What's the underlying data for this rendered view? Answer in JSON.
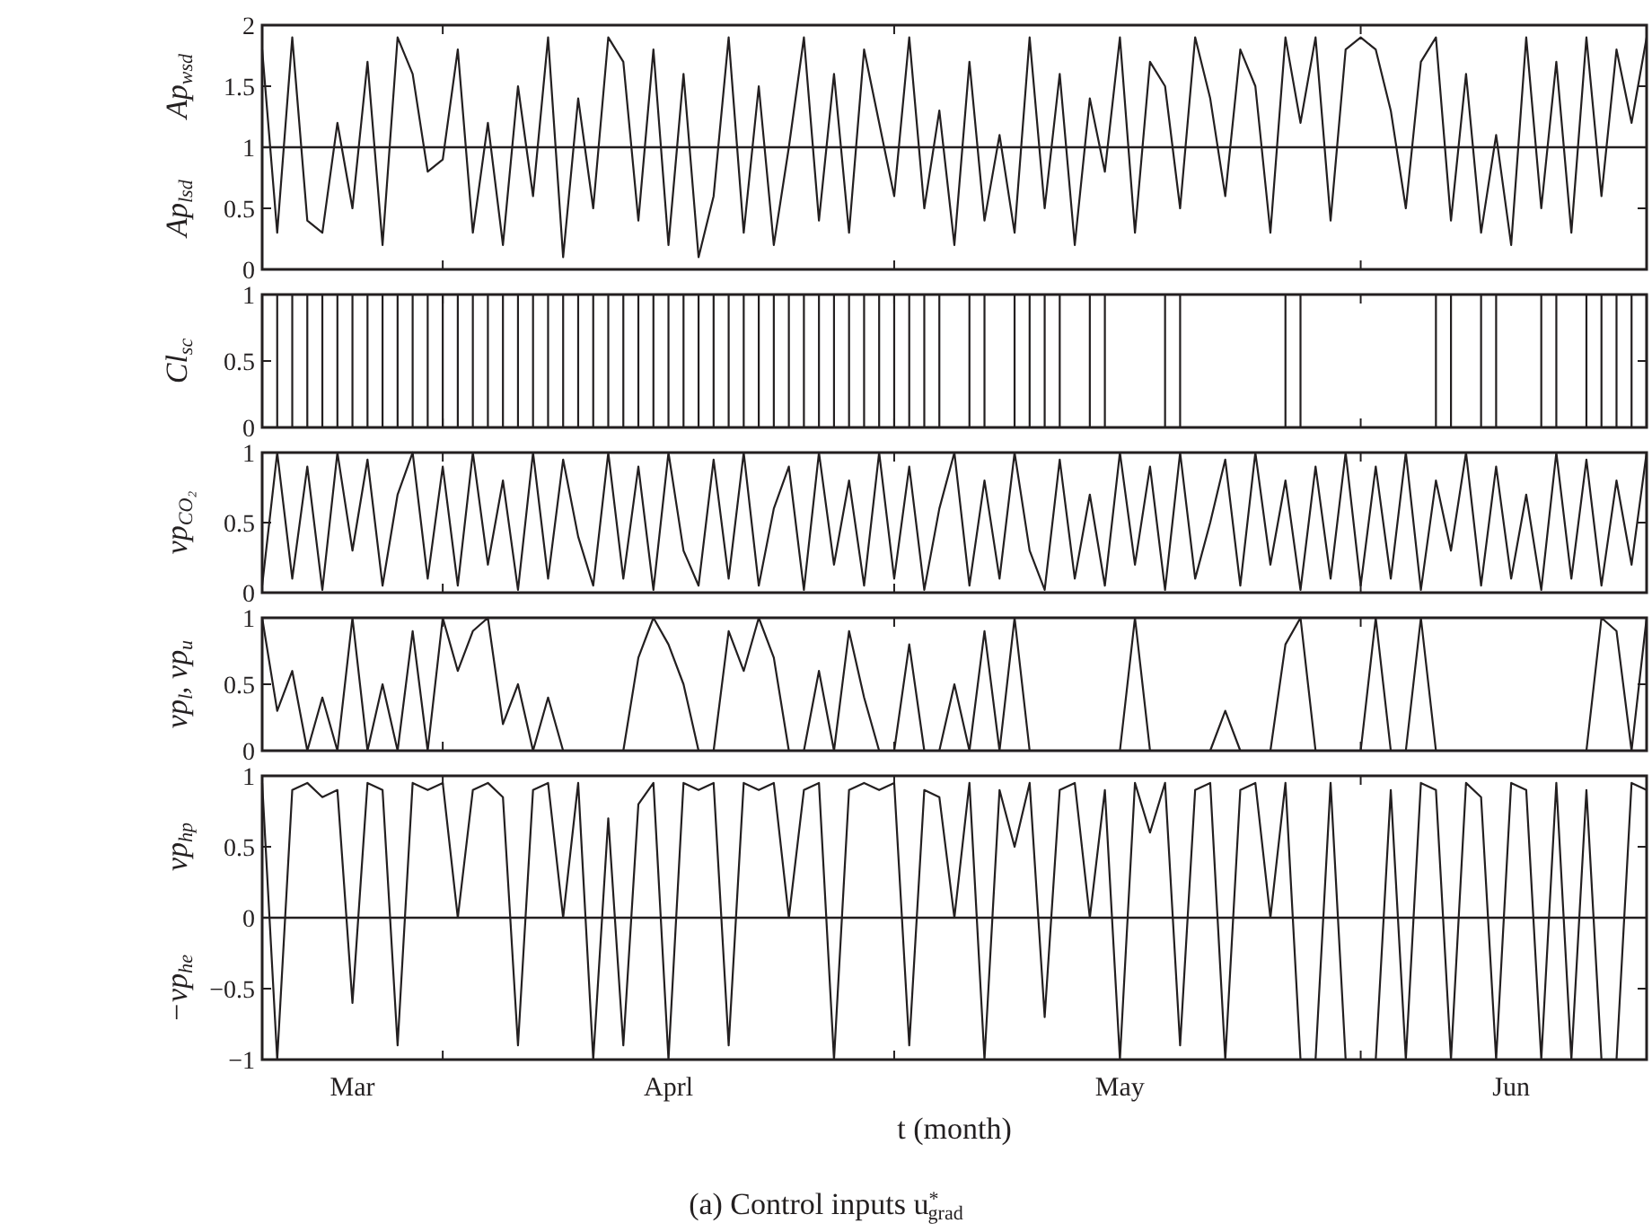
{
  "chart_data": [
    {
      "type": "line",
      "ylabel": "Ap$_{wsd}$",
      "annotations": [
        "Ap$_{lsd}$"
      ],
      "tick_labels": "y",
      "xlim": [
        "--03-20",
        "--06-20"
      ],
      "xticks": [
        {
          "value": "--04-01",
          "label": null
        },
        {
          "value": "--05-01",
          "label": null
        },
        {
          "value": "--06-01",
          "label": null
        }
      ],
      "ylim": [
        0,
        2
      ],
      "yticks": [
        0,
        0.5,
        1,
        1.5,
        2
      ],
      "ref_lines": [
        {
          "axis": "y",
          "value": 1,
          "color": "#231f20"
        }
      ],
      "x": [
        "--03-20",
        "--03-21",
        "--03-22",
        "--03-23",
        "--03-24",
        "--03-25",
        "--03-26",
        "--03-27",
        "--03-28",
        "--03-29",
        "--03-30",
        "--03-31",
        "--04-01",
        "--04-02",
        "--04-03",
        "--04-04",
        "--04-05",
        "--04-06",
        "--04-07",
        "--04-08",
        "--04-09",
        "--04-10",
        "--04-11",
        "--04-12",
        "--04-13",
        "--04-14",
        "--04-15",
        "--04-16",
        "--04-17",
        "--04-18",
        "--04-19",
        "--04-20",
        "--04-21",
        "--04-22",
        "--04-23",
        "--04-24",
        "--04-25",
        "--04-26",
        "--04-27",
        "--04-28",
        "--04-29",
        "--04-30",
        "--05-01",
        "--05-02",
        "--05-03",
        "--05-04",
        "--05-05",
        "--05-06",
        "--05-07",
        "--05-08",
        "--05-09",
        "--05-10",
        "--05-11",
        "--05-12",
        "--05-13",
        "--05-14",
        "--05-15",
        "--05-16",
        "--05-17",
        "--05-18",
        "--05-19",
        "--05-20",
        "--05-21",
        "--05-22",
        "--05-23",
        "--05-24",
        "--05-25",
        "--05-26",
        "--05-27",
        "--05-28",
        "--05-29",
        "--05-30",
        "--05-31",
        "--06-01",
        "--06-02",
        "--06-03",
        "--06-04",
        "--06-05",
        "--06-06",
        "--06-07",
        "--06-08",
        "--06-09",
        "--06-10",
        "--06-11",
        "--06-12",
        "--06-13",
        "--06-14",
        "--06-15",
        "--06-16",
        "--06-17",
        "--06-18",
        "--06-19",
        "--06-20"
      ],
      "series": [
        {
          "color": "#231f20",
          "values": [
            1.8,
            0.3,
            1.9,
            0.4,
            0.3,
            1.2,
            0.5,
            1.7,
            0.2,
            1.9,
            1.6,
            0.8,
            0.9,
            1.8,
            0.3,
            1.2,
            0.2,
            1.5,
            0.6,
            1.9,
            0.1,
            1.4,
            0.5,
            1.9,
            1.7,
            0.4,
            1.8,
            0.2,
            1.6,
            0.1,
            0.6,
            1.9,
            0.3,
            1.5,
            0.2,
            1.0,
            1.9,
            0.4,
            1.6,
            0.3,
            1.8,
            1.2,
            0.6,
            1.9,
            0.5,
            1.3,
            0.2,
            1.7,
            0.4,
            1.1,
            0.3,
            1.9,
            0.5,
            1.6,
            0.2,
            1.4,
            0.8,
            1.9,
            0.3,
            1.7,
            1.5,
            0.5,
            1.9,
            1.4,
            0.6,
            1.8,
            1.5,
            0.3,
            1.9,
            1.2,
            1.9,
            0.4,
            1.8,
            1.9,
            1.8,
            1.3,
            0.5,
            1.7,
            1.9,
            0.4,
            1.6,
            0.3,
            1.1,
            0.2,
            1.9,
            0.5,
            1.7,
            0.3,
            1.9,
            0.6,
            1.8,
            1.2,
            1.9
          ]
        }
      ]
    },
    {
      "type": "step",
      "ylabel": "Cl$_{sc}$",
      "tick_labels": "y",
      "xlim": [
        "--03-20",
        "--06-20"
      ],
      "xticks": [
        {
          "value": "--04-01",
          "label": null
        },
        {
          "value": "--05-01",
          "label": null
        },
        {
          "value": "--06-01",
          "label": null
        }
      ],
      "ylim": [
        0,
        1
      ],
      "yticks": [
        0,
        0.5,
        1
      ],
      "x": [
        "--03-20",
        "--03-21",
        "--03-22",
        "--03-23",
        "--03-24",
        "--03-25",
        "--03-26",
        "--03-27",
        "--03-28",
        "--03-29",
        "--03-30",
        "--03-31",
        "--04-01",
        "--04-02",
        "--04-03",
        "--04-04",
        "--04-05",
        "--04-06",
        "--04-07",
        "--04-08",
        "--04-09",
        "--04-10",
        "--04-11",
        "--04-12",
        "--04-13",
        "--04-14",
        "--04-15",
        "--04-16",
        "--04-17",
        "--04-18",
        "--04-19",
        "--04-20",
        "--04-21",
        "--04-22",
        "--04-23",
        "--04-24",
        "--04-25",
        "--04-26",
        "--04-27",
        "--04-28",
        "--04-29",
        "--04-30",
        "--05-01",
        "--05-02",
        "--05-03",
        "--05-04",
        "--05-05",
        "--05-06",
        "--05-07",
        "--05-08",
        "--05-09",
        "--05-10",
        "--05-11",
        "--05-12",
        "--05-13",
        "--05-14",
        "--05-15",
        "--05-16",
        "--05-17",
        "--05-18",
        "--05-19",
        "--05-20",
        "--05-21",
        "--05-22",
        "--05-23",
        "--05-24",
        "--05-25",
        "--05-26",
        "--05-27",
        "--05-28",
        "--05-29",
        "--05-30",
        "--05-31",
        "--06-01",
        "--06-02",
        "--06-03",
        "--06-04",
        "--06-05",
        "--06-06",
        "--06-07",
        "--06-08",
        "--06-09",
        "--06-10",
        "--06-11",
        "--06-12",
        "--06-13",
        "--06-14",
        "--06-15",
        "--06-16",
        "--06-17",
        "--06-18",
        "--06-19",
        "--06-20"
      ],
      "series": [
        {
          "color": "#231f20",
          "values": [
            1,
            0,
            1,
            0,
            1,
            0,
            1,
            0,
            1,
            0,
            1,
            0,
            1,
            0,
            1,
            0,
            1,
            0,
            1,
            0,
            1,
            0,
            1,
            0,
            1,
            0,
            1,
            0,
            1,
            0,
            1,
            0,
            1,
            0,
            1,
            0,
            1,
            0,
            1,
            0,
            1,
            0,
            1,
            0,
            1,
            0,
            0,
            1,
            0,
            0,
            1,
            0,
            1,
            0,
            0,
            1,
            0,
            0,
            0,
            0,
            1,
            0,
            0,
            0,
            0,
            0,
            0,
            0,
            1,
            0,
            0,
            0,
            0,
            0,
            0,
            0,
            0,
            0,
            1,
            0,
            0,
            1,
            0,
            0,
            0,
            1,
            0,
            0,
            1,
            0,
            1,
            0,
            1
          ]
        }
      ]
    },
    {
      "type": "line",
      "ylabel": "vp$_{CO₂}$",
      "tick_labels": "y",
      "xlim": [
        "--03-20",
        "--06-20"
      ],
      "xticks": [
        {
          "value": "--04-01",
          "label": null
        },
        {
          "value": "--05-01",
          "label": null
        },
        {
          "value": "--06-01",
          "label": null
        }
      ],
      "ylim": [
        0,
        1
      ],
      "yticks": [
        0,
        0.5,
        1
      ],
      "x": [
        "--03-20",
        "--03-21",
        "--03-22",
        "--03-23",
        "--03-24",
        "--03-25",
        "--03-26",
        "--03-27",
        "--03-28",
        "--03-29",
        "--03-30",
        "--03-31",
        "--04-01",
        "--04-02",
        "--04-03",
        "--04-04",
        "--04-05",
        "--04-06",
        "--04-07",
        "--04-08",
        "--04-09",
        "--04-10",
        "--04-11",
        "--04-12",
        "--04-13",
        "--04-14",
        "--04-15",
        "--04-16",
        "--04-17",
        "--04-18",
        "--04-19",
        "--04-20",
        "--04-21",
        "--04-22",
        "--04-23",
        "--04-24",
        "--04-25",
        "--04-26",
        "--04-27",
        "--04-28",
        "--04-29",
        "--04-30",
        "--05-01",
        "--05-02",
        "--05-03",
        "--05-04",
        "--05-05",
        "--05-06",
        "--05-07",
        "--05-08",
        "--05-09",
        "--05-10",
        "--05-11",
        "--05-12",
        "--05-13",
        "--05-14",
        "--05-15",
        "--05-16",
        "--05-17",
        "--05-18",
        "--05-19",
        "--05-20",
        "--05-21",
        "--05-22",
        "--05-23",
        "--05-24",
        "--05-25",
        "--05-26",
        "--05-27",
        "--05-28",
        "--05-29",
        "--05-30",
        "--05-31",
        "--06-01",
        "--06-02",
        "--06-03",
        "--06-04",
        "--06-05",
        "--06-06",
        "--06-07",
        "--06-08",
        "--06-09",
        "--06-10",
        "--06-11",
        "--06-12",
        "--06-13",
        "--06-14",
        "--06-15",
        "--06-16",
        "--06-17",
        "--06-18",
        "--06-19",
        "--06-20"
      ],
      "series": [
        {
          "color": "#231f20",
          "values": [
            0.05,
            1,
            0.1,
            0.9,
            0.02,
            1,
            0.3,
            0.95,
            0.05,
            0.7,
            1,
            0.1,
            0.9,
            0.05,
            1,
            0.2,
            0.8,
            0.02,
            1,
            0.1,
            0.95,
            0.4,
            0.05,
            1,
            0.1,
            0.9,
            0.02,
            1,
            0.3,
            0.05,
            0.95,
            0.1,
            1,
            0.05,
            0.6,
            0.9,
            0.02,
            1,
            0.2,
            0.8,
            0.05,
            1,
            0.1,
            0.9,
            0.02,
            0.6,
            1,
            0.05,
            0.8,
            0.1,
            1,
            0.3,
            0.02,
            0.95,
            0.1,
            0.7,
            0.05,
            1,
            0.2,
            0.9,
            0.02,
            1,
            0.1,
            0.5,
            0.95,
            0.05,
            1,
            0.2,
            0.8,
            0.02,
            0.9,
            0.1,
            1,
            0.05,
            0.9,
            0.1,
            1,
            0.02,
            0.8,
            0.3,
            1,
            0.05,
            0.9,
            0.1,
            0.7,
            0.02,
            1,
            0.1,
            0.95,
            0.05,
            0.8,
            0.2,
            1
          ]
        }
      ]
    },
    {
      "type": "line",
      "ylabel": "vp$_{l}$, vp$_{u}$",
      "tick_labels": "y",
      "xlim": [
        "--03-20",
        "--06-20"
      ],
      "xticks": [
        {
          "value": "--04-01",
          "label": null
        },
        {
          "value": "--05-01",
          "label": null
        },
        {
          "value": "--06-01",
          "label": null
        }
      ],
      "ylim": [
        0,
        1
      ],
      "yticks": [
        0,
        0.5,
        1
      ],
      "x": [
        "--03-20",
        "--03-21",
        "--03-22",
        "--03-23",
        "--03-24",
        "--03-25",
        "--03-26",
        "--03-27",
        "--03-28",
        "--03-29",
        "--03-30",
        "--03-31",
        "--04-01",
        "--04-02",
        "--04-03",
        "--04-04",
        "--04-05",
        "--04-06",
        "--04-07",
        "--04-08",
        "--04-09",
        "--04-10",
        "--04-11",
        "--04-12",
        "--04-13",
        "--04-14",
        "--04-15",
        "--04-16",
        "--04-17",
        "--04-18",
        "--04-19",
        "--04-20",
        "--04-21",
        "--04-22",
        "--04-23",
        "--04-24",
        "--04-25",
        "--04-26",
        "--04-27",
        "--04-28",
        "--04-29",
        "--04-30",
        "--05-01",
        "--05-02",
        "--05-03",
        "--05-04",
        "--05-05",
        "--05-06",
        "--05-07",
        "--05-08",
        "--05-09",
        "--05-10",
        "--05-11",
        "--05-12",
        "--05-13",
        "--05-14",
        "--05-15",
        "--05-16",
        "--05-17",
        "--05-18",
        "--05-19",
        "--05-20",
        "--05-21",
        "--05-22",
        "--05-23",
        "--05-24",
        "--05-25",
        "--05-26",
        "--05-27",
        "--05-28",
        "--05-29",
        "--05-30",
        "--05-31",
        "--06-01",
        "--06-02",
        "--06-03",
        "--06-04",
        "--06-05",
        "--06-06",
        "--06-07",
        "--06-08",
        "--06-09",
        "--06-10",
        "--06-11",
        "--06-12",
        "--06-13",
        "--06-14",
        "--06-15",
        "--06-16",
        "--06-17",
        "--06-18",
        "--06-19",
        "--06-20"
      ],
      "series": [
        {
          "color": "#231f20",
          "values": [
            1,
            0.3,
            0.6,
            0,
            0.4,
            0,
            1,
            0,
            0.5,
            0,
            0.9,
            0,
            1,
            0.6,
            0.9,
            1,
            0.2,
            0.5,
            0,
            0.4,
            0,
            0,
            0,
            0,
            0,
            0.7,
            1,
            0.8,
            0.5,
            0,
            0,
            0.9,
            0.6,
            1,
            0.7,
            0,
            0,
            0.6,
            0,
            0.9,
            0.4,
            0,
            0,
            0.8,
            0,
            0,
            0.5,
            0,
            0.9,
            0,
            1,
            0,
            0,
            0,
            0,
            0,
            0,
            0,
            1,
            0,
            0,
            0,
            0,
            0,
            0.3,
            0,
            0,
            0,
            0.8,
            1,
            0,
            0,
            0,
            0,
            1,
            0,
            0,
            1,
            0,
            0,
            0,
            0,
            0,
            0,
            0,
            0,
            0,
            0,
            0,
            1,
            0.9,
            0,
            1
          ]
        }
      ]
    },
    {
      "type": "line",
      "ylabel": "vp$_{hp}$",
      "annotations": [
        "−vp$_{he}$",
        "(a) Control inputs u$^{*}$$_{grad}$"
      ],
      "xlabel": "t (month)",
      "xlim": [
        "--03-20",
        "--06-20"
      ],
      "xticks": [
        {
          "value": "--03-26",
          "label": "Mar"
        },
        {
          "value": "--04-01",
          "label": null
        },
        {
          "value": "--04-16",
          "label": "Aprl"
        },
        {
          "value": "--05-01",
          "label": null
        },
        {
          "value": "--05-16",
          "label": "May"
        },
        {
          "value": "--06-01",
          "label": null
        },
        {
          "value": "--06-11",
          "label": "Jun"
        }
      ],
      "ylim": [
        -1,
        1
      ],
      "yticks": [
        {
          "value": -1,
          "label": "−1"
        },
        {
          "value": -0.5,
          "label": "−0.5"
        },
        0,
        0.5,
        1
      ],
      "ref_lines": [
        {
          "axis": "y",
          "value": 0,
          "color": "#231f20"
        }
      ],
      "x": [
        "--03-20",
        "--03-21",
        "--03-22",
        "--03-23",
        "--03-24",
        "--03-25",
        "--03-26",
        "--03-27",
        "--03-28",
        "--03-29",
        "--03-30",
        "--03-31",
        "--04-01",
        "--04-02",
        "--04-03",
        "--04-04",
        "--04-05",
        "--04-06",
        "--04-07",
        "--04-08",
        "--04-09",
        "--04-10",
        "--04-11",
        "--04-12",
        "--04-13",
        "--04-14",
        "--04-15",
        "--04-16",
        "--04-17",
        "--04-18",
        "--04-19",
        "--04-20",
        "--04-21",
        "--04-22",
        "--04-23",
        "--04-24",
        "--04-25",
        "--04-26",
        "--04-27",
        "--04-28",
        "--04-29",
        "--04-30",
        "--05-01",
        "--05-02",
        "--05-03",
        "--05-04",
        "--05-05",
        "--05-06",
        "--05-07",
        "--05-08",
        "--05-09",
        "--05-10",
        "--05-11",
        "--05-12",
        "--05-13",
        "--05-14",
        "--05-15",
        "--05-16",
        "--05-17",
        "--05-18",
        "--05-19",
        "--05-20",
        "--05-21",
        "--05-22",
        "--05-23",
        "--05-24",
        "--05-25",
        "--05-26",
        "--05-27",
        "--05-28",
        "--05-29",
        "--05-30",
        "--05-31",
        "--06-01",
        "--06-02",
        "--06-03",
        "--06-04",
        "--06-05",
        "--06-06",
        "--06-07",
        "--06-08",
        "--06-09",
        "--06-10",
        "--06-11",
        "--06-12",
        "--06-13",
        "--06-14",
        "--06-15",
        "--06-16",
        "--06-17",
        "--06-18",
        "--06-19",
        "--06-20"
      ],
      "series": [
        {
          "color": "#231f20",
          "values": [
            0.95,
            -1,
            0.9,
            0.95,
            0.85,
            0.9,
            -0.6,
            0.95,
            0.9,
            -0.9,
            0.95,
            0.9,
            0.95,
            0,
            0.9,
            0.95,
            0.85,
            -0.9,
            0.9,
            0.95,
            0,
            0.95,
            -1,
            0.7,
            -0.9,
            0.8,
            0.95,
            -1,
            0.95,
            0.9,
            0.95,
            -0.9,
            0.95,
            0.9,
            0.95,
            0,
            0.9,
            0.95,
            -1,
            0.9,
            0.95,
            0.9,
            0.95,
            -0.9,
            0.9,
            0.85,
            0,
            0.95,
            -1,
            0.9,
            0.5,
            0.95,
            -0.7,
            0.9,
            0.95,
            0,
            0.9,
            -1,
            0.95,
            0.6,
            0.95,
            -0.9,
            0.9,
            0.95,
            -1,
            0.9,
            0.95,
            0,
            0.95,
            -1,
            -1,
            0.95,
            -1,
            -1,
            -1,
            0.9,
            -1,
            0.95,
            0.9,
            -1,
            0.95,
            0.85,
            -1,
            0.95,
            0.9,
            -1,
            0.95,
            -1,
            0.9,
            -1,
            -1,
            0.95,
            0.9
          ]
        }
      ]
    }
  ]
}
